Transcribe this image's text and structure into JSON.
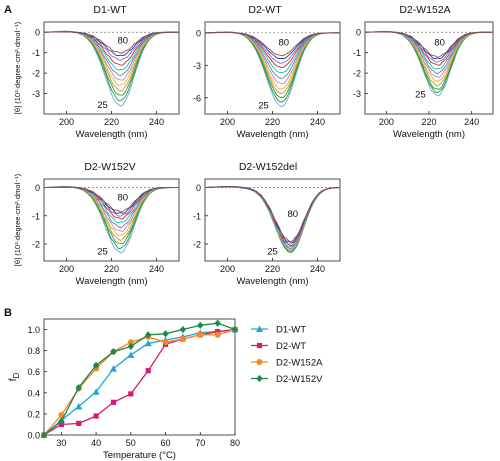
{
  "figure": {
    "panel_a_label": "A",
    "panel_b_label": "B"
  },
  "cd_common": {
    "xlabel": "Wavelength (nm)",
    "ylabel": "[θ] (10³·degree·cm²·dmol⁻¹)",
    "x_ticks": [
      200,
      220,
      240
    ],
    "xlim": [
      190,
      250
    ],
    "curve_colors": [
      "#6fa8d6",
      "#1a9850",
      "#2ca02c",
      "#e08a3c",
      "#d4c21c",
      "#b58ad6",
      "#7f7f7f",
      "#17becf",
      "#d62728",
      "#9467bd",
      "#1f3b9a",
      "#8c564b",
      "#2b5fa8",
      "#555555"
    ],
    "temperatures_c": [
      25,
      30,
      35,
      40,
      45,
      50,
      55,
      60,
      65,
      70,
      75,
      80
    ]
  },
  "chart_data": [
    {
      "type": "line",
      "title": "D1-WT",
      "xlabel": "Wavelength (nm)",
      "ylabel": "[θ] (10³·degree·cm²·dmol⁻¹)",
      "xlim": [
        190,
        250
      ],
      "ylim": [
        -4,
        0.5
      ],
      "y_ticks": [
        0,
        -1,
        -2,
        -3
      ],
      "min_wavelength": 224,
      "min_value_at_25C": -3.6,
      "min_value_at_80C": -1.0,
      "series": [
        {
          "name": "25",
          "min": -3.6
        },
        {
          "min": -3.35
        },
        {
          "min": -3.1
        },
        {
          "min": -2.85
        },
        {
          "min": -2.6
        },
        {
          "min": -2.35
        },
        {
          "min": -2.1
        },
        {
          "min": -1.85
        },
        {
          "min": -1.6
        },
        {
          "min": -1.35
        },
        {
          "min": -1.15
        },
        {
          "name": "80",
          "min": -1.0
        }
      ],
      "annotations": [
        "25",
        "80"
      ]
    },
    {
      "type": "line",
      "title": "D2-WT",
      "xlabel": "Wavelength (nm)",
      "ylabel": "",
      "xlim": [
        190,
        250
      ],
      "ylim": [
        -7.5,
        1
      ],
      "y_ticks": [
        0,
        -3,
        -6
      ],
      "min_wavelength": 224,
      "min_value_at_25C": -6.8,
      "min_value_at_80C": -2.1,
      "series": [
        {
          "name": "25",
          "min": -6.8
        },
        {
          "min": -6.4
        },
        {
          "min": -6.0
        },
        {
          "min": -5.6
        },
        {
          "min": -5.2
        },
        {
          "min": -4.7
        },
        {
          "min": -4.2
        },
        {
          "min": -3.7
        },
        {
          "min": -3.2
        },
        {
          "min": -2.8
        },
        {
          "min": -2.4
        },
        {
          "name": "80",
          "min": -2.1
        }
      ],
      "annotations": [
        "25",
        "80"
      ]
    },
    {
      "type": "line",
      "title": "D2-W152A",
      "xlabel": "Wavelength (nm)",
      "ylabel": "",
      "xlim": [
        190,
        250
      ],
      "ylim": [
        -4,
        0.5
      ],
      "y_ticks": [
        0,
        -1,
        -2,
        -3
      ],
      "min_wavelength": 224,
      "min_value_at_25C": -3.1,
      "min_value_at_80C": -1.2,
      "series": [
        {
          "name": "25",
          "min": -3.1
        },
        {
          "min": -2.95
        },
        {
          "min": -2.8
        },
        {
          "min": -2.6
        },
        {
          "min": -2.4
        },
        {
          "min": -2.2
        },
        {
          "min": -2.0
        },
        {
          "min": -1.8
        },
        {
          "min": -1.6
        },
        {
          "min": -1.45
        },
        {
          "min": -1.3
        },
        {
          "name": "80",
          "min": -1.2
        }
      ],
      "annotations": [
        "25",
        "80"
      ]
    },
    {
      "type": "line",
      "title": "D2-W152V",
      "xlabel": "Wavelength (nm)",
      "ylabel": "[θ] (10³·degree·cm²·dmol⁻¹)",
      "xlim": [
        190,
        250
      ],
      "ylim": [
        -2.6,
        0.3
      ],
      "y_ticks": [
        0,
        -1,
        -2
      ],
      "min_wavelength": 224,
      "min_value_at_25C": -2.3,
      "min_value_at_80C": -0.85,
      "series": [
        {
          "name": "25",
          "min": -2.3
        },
        {
          "min": -2.15
        },
        {
          "min": -2.0
        },
        {
          "min": -1.85
        },
        {
          "min": -1.7
        },
        {
          "min": -1.55
        },
        {
          "min": -1.4
        },
        {
          "min": -1.25
        },
        {
          "min": -1.1
        },
        {
          "min": -1.0
        },
        {
          "min": -0.92
        },
        {
          "name": "80",
          "min": -0.85
        }
      ],
      "annotations": [
        "25",
        "80"
      ]
    },
    {
      "type": "line",
      "title": "D2-W152del",
      "xlabel": "Wavelength (nm)",
      "ylabel": "",
      "xlim": [
        190,
        250
      ],
      "ylim": [
        -2.6,
        0.3
      ],
      "y_ticks": [
        0,
        -1,
        -2
      ],
      "min_wavelength": 228,
      "min_value_at_25C": -2.3,
      "min_value_at_80C": -1.9,
      "series": [
        {
          "name": "25",
          "min": -2.3
        },
        {
          "min": -2.28
        },
        {
          "min": -2.25
        },
        {
          "min": -2.22
        },
        {
          "min": -2.2
        },
        {
          "min": -2.17
        },
        {
          "min": -2.14
        },
        {
          "min": -2.1
        },
        {
          "min": -2.05
        },
        {
          "min": -2.0
        },
        {
          "min": -1.95
        },
        {
          "name": "80",
          "min": -1.9
        }
      ],
      "annotations": [
        "25",
        "80"
      ]
    },
    {
      "type": "line",
      "title": "",
      "xlabel": "Temperature (°C)",
      "ylabel": "fD",
      "xlim": [
        25,
        80
      ],
      "ylim": [
        0,
        1.1
      ],
      "x_ticks": [
        30,
        40,
        50,
        60,
        70,
        80
      ],
      "y_ticks": [
        0,
        0.2,
        0.4,
        0.6,
        0.8,
        1.0
      ],
      "legend_position": "right",
      "x": [
        25,
        30,
        35,
        40,
        45,
        50,
        55,
        60,
        65,
        70,
        75,
        80
      ],
      "series": [
        {
          "name": "D1-WT",
          "color": "#1fa7d6",
          "marker": "triangle",
          "values": [
            0,
            0.14,
            0.27,
            0.41,
            0.63,
            0.76,
            0.87,
            0.9,
            0.93,
            0.97,
            0.98,
            1.0
          ]
        },
        {
          "name": "D2-WT",
          "color": "#d81b72",
          "marker": "square",
          "values": [
            0,
            0.1,
            0.11,
            0.18,
            0.31,
            0.39,
            0.61,
            0.86,
            0.91,
            0.95,
            0.98,
            1.0
          ]
        },
        {
          "name": "D2-W152A",
          "color": "#f28a25",
          "marker": "circle",
          "values": [
            0,
            0.19,
            0.44,
            0.63,
            0.79,
            0.88,
            0.93,
            0.88,
            0.91,
            0.95,
            0.95,
            1.0
          ]
        },
        {
          "name": "D2-W152V",
          "color": "#1a8a4a",
          "marker": "diamond",
          "values": [
            0,
            0.13,
            0.45,
            0.66,
            0.79,
            0.84,
            0.95,
            0.96,
            1.0,
            1.04,
            1.06,
            1.0
          ]
        }
      ]
    }
  ]
}
